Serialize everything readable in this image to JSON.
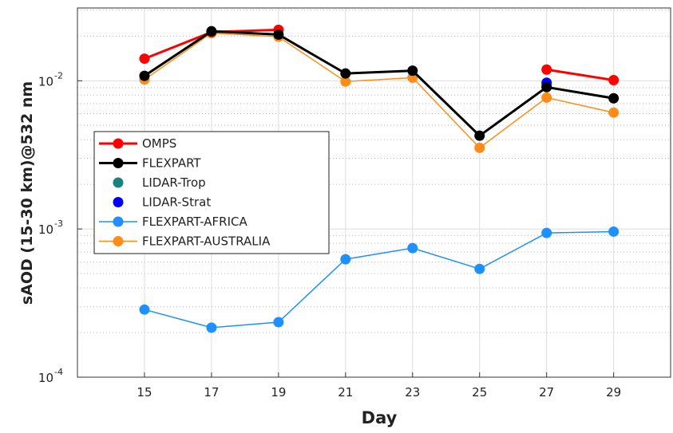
{
  "chart_data": {
    "type": "line",
    "xlabel": "Day",
    "ylabel": "sAOD (15-30 km)@532 nm",
    "x": [
      15,
      17,
      19,
      21,
      23,
      25,
      27,
      29
    ],
    "xlim": [
      13,
      30.7
    ],
    "xticks": [
      15,
      17,
      19,
      21,
      23,
      25,
      27,
      29
    ],
    "ylim": [
      0.0001,
      0.031
    ],
    "log_y": true,
    "grid": true,
    "minor_grid": true,
    "legend_loc": "center left",
    "yticks": [
      {
        "value": 0.0001,
        "label": "10",
        "exponent": "-4"
      },
      {
        "value": 0.001,
        "label": "10",
        "exponent": "-3"
      },
      {
        "value": 0.01,
        "label": "10",
        "exponent": "-2"
      }
    ],
    "series": [
      {
        "name": "OMPS",
        "color": "#ff0000",
        "linewidth": 3,
        "values": [
          0.0141,
          0.0213,
          0.0221,
          null,
          null,
          null,
          0.0119,
          0.0101
        ]
      },
      {
        "name": "FLEXPART",
        "color": "#000000",
        "linewidth": 3,
        "values": [
          0.0108,
          0.0216,
          0.0205,
          0.0112,
          0.0117,
          0.00426,
          0.00906,
          0.00762
        ]
      },
      {
        "name": "LIDAR-Trop",
        "color": "#1a8080",
        "linewidth": 0,
        "values": [
          null,
          null,
          null,
          null,
          null,
          null,
          0.0093,
          null
        ]
      },
      {
        "name": "LIDAR-Strat",
        "color": "#0000ff",
        "linewidth": 0,
        "values": [
          null,
          null,
          null,
          null,
          null,
          null,
          0.0097,
          null
        ]
      },
      {
        "name": "FLEXPART-AFRICA",
        "color": "#1e90ff",
        "linewidth": 1.5,
        "values": [
          0.000286,
          0.000216,
          0.000235,
          0.000625,
          0.000743,
          0.000538,
          0.00094,
          0.00096
        ]
      },
      {
        "name": "FLEXPART-AUSTRALIA",
        "color": "#ff8c1a",
        "linewidth": 1.5,
        "values": [
          0.0102,
          0.021,
          0.0198,
          0.00988,
          0.0105,
          0.00353,
          0.0077,
          0.0061
        ]
      }
    ]
  }
}
